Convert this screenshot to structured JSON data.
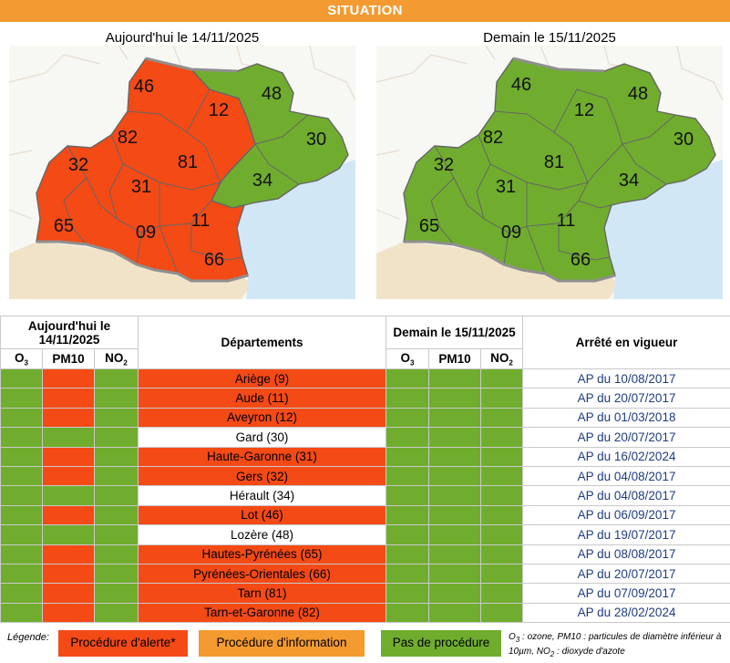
{
  "banner": "SITUATION",
  "maps": {
    "today_title": "Aujourd'hui le 14/11/2025",
    "tomorrow_title": "Demain le 15/11/2025",
    "labels": [
      "46",
      "48",
      "12",
      "30",
      "82",
      "32",
      "81",
      "31",
      "34",
      "65",
      "09",
      "11",
      "66"
    ]
  },
  "colors": {
    "alert": "#f44a16",
    "info": "#f39a30",
    "none": "#70ad2e",
    "sea": "#d2e7f6",
    "outside": "#f0e3c8",
    "link": "#1f3c82"
  },
  "table": {
    "today_header": "Aujourd'hui le 14/11/2025",
    "departments_header": "Départements",
    "tomorrow_header": "Demain le 15/11/2025",
    "arrete_header": "Arrêté en vigueur",
    "sub_o3": "O",
    "sub_o3_index": "3",
    "sub_pm10": "PM10",
    "sub_no2": "NO",
    "sub_no2_index": "2",
    "rows": [
      {
        "dept": "Ariège (9)",
        "alert": true,
        "arrete": "AP du 10/08/2017"
      },
      {
        "dept": "Aude (11)",
        "alert": true,
        "arrete": "AP du 20/07/2017"
      },
      {
        "dept": "Aveyron (12)",
        "alert": true,
        "arrete": "AP du 01/03/2018"
      },
      {
        "dept": "Gard (30)",
        "alert": false,
        "arrete": "AP du 20/07/2017"
      },
      {
        "dept": "Haute-Garonne (31)",
        "alert": true,
        "arrete": "AP du 16/02/2024"
      },
      {
        "dept": "Gers (32)",
        "alert": true,
        "arrete": "AP du 04/08/2017"
      },
      {
        "dept": "Hérault (34)",
        "alert": false,
        "arrete": "AP du 04/08/2017"
      },
      {
        "dept": "Lot (46)",
        "alert": true,
        "arrete": "AP du 06/09/2017"
      },
      {
        "dept": "Lozère (48)",
        "alert": false,
        "arrete": "AP du 19/07/2017"
      },
      {
        "dept": "Hautes-Pyrénées (65)",
        "alert": true,
        "arrete": "AP du 08/08/2017"
      },
      {
        "dept": "Pyrénées-Orientales (66)",
        "alert": true,
        "arrete": "AP du 20/07/2017"
      },
      {
        "dept": "Tarn (81)",
        "alert": true,
        "arrete": "AP du 07/09/2017"
      },
      {
        "dept": "Tarn-et-Garonne (82)",
        "alert": true,
        "arrete": "AP du 28/02/2024"
      }
    ]
  },
  "legend": {
    "label": "Légende:",
    "alert": "Procédure d'alerte*",
    "info": "Procédure d'information",
    "none": "Pas de procédure",
    "note_1": "O",
    "note_1_index": "3",
    "note_2": " : ozone, PM10 : particules de diamètre inférieur à 10µm, NO",
    "note_2_index": "2",
    "note_3": " : dioxyde d'azote"
  }
}
